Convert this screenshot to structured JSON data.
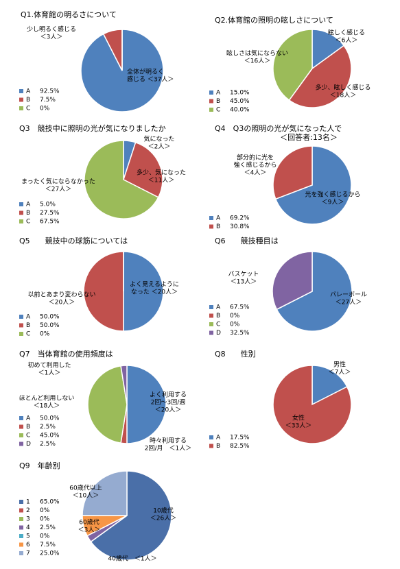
{
  "chart_data": [
    {
      "type": "pie",
      "title": "Q1.体育館の明るさについて",
      "categories": [
        "A",
        "B",
        "C"
      ],
      "values": [
        92.5,
        7.5,
        0
      ],
      "value_labels": [
        "92.5%",
        "7.5%",
        "0%"
      ],
      "colors": [
        "#4f81bd",
        "#c0504d",
        "#9bbb59"
      ],
      "annotations": [
        [
          "全体が明るく",
          "感じる ＜37人＞"
        ],
        [
          "少し明るく感じる",
          "＜3人＞"
        ]
      ]
    },
    {
      "type": "pie",
      "title": "Q2.体育館の照明の眩しさについて",
      "categories": [
        "A",
        "B",
        "C"
      ],
      "values": [
        15.0,
        45.0,
        40.0
      ],
      "value_labels": [
        "15.0%",
        "45.0%",
        "40.0%"
      ],
      "colors": [
        "#4f81bd",
        "#c0504d",
        "#9bbb59"
      ],
      "annotations": [
        [
          "眩しく感じる",
          "＜6人＞"
        ],
        [
          "多少、眩しく感じる",
          "＜18人＞"
        ],
        [
          "眩しさは気にならない",
          "＜16人＞"
        ]
      ]
    },
    {
      "type": "pie",
      "title": "Q3　競技中に照明の光が気になりましたか",
      "categories": [
        "A",
        "B",
        "C"
      ],
      "values": [
        5.0,
        27.5,
        67.5
      ],
      "value_labels": [
        "5.0%",
        "27.5%",
        "67.5%"
      ],
      "colors": [
        "#4f81bd",
        "#c0504d",
        "#9bbb59"
      ],
      "annotations": [
        [
          "気になった",
          "＜2人＞"
        ],
        [
          "多少、気になった",
          "＜11人＞"
        ],
        [
          "まったく気にならなかった",
          "＜27人＞"
        ]
      ]
    },
    {
      "type": "pie",
      "title": "Q4　Q3の照明の光が気になった人で",
      "subtitle": "＜回答者:13名＞",
      "categories": [
        "A",
        "B"
      ],
      "values": [
        69.2,
        30.8
      ],
      "value_labels": [
        "69.2%",
        "30.8%"
      ],
      "colors": [
        "#4f81bd",
        "#c0504d"
      ],
      "annotations": [
        [
          "光を強く感じるから",
          "＜9人＞"
        ],
        [
          "部分的に光を",
          "強く感じるから",
          "＜4人＞"
        ]
      ]
    },
    {
      "type": "pie",
      "title": "Q5　　競技中の球筋については",
      "categories": [
        "A",
        "B",
        "C"
      ],
      "values": [
        50.0,
        50.0,
        0
      ],
      "value_labels": [
        "50.0%",
        "50.0%",
        "0%"
      ],
      "colors": [
        "#4f81bd",
        "#c0504d",
        "#9bbb59"
      ],
      "annotations": [
        [
          "よく見えるように",
          "なった ＜20人＞"
        ],
        [
          "以前とあまり変わらない",
          "＜20人＞"
        ]
      ]
    },
    {
      "type": "pie",
      "title": "Q6　　競技種目は",
      "categories": [
        "A",
        "B",
        "C",
        "D"
      ],
      "values": [
        67.5,
        0,
        0,
        32.5
      ],
      "value_labels": [
        "67.5%",
        "0%",
        "0%",
        "32.5%"
      ],
      "colors": [
        "#4f81bd",
        "#c0504d",
        "#9bbb59",
        "#8064a2"
      ],
      "annotations": [
        [
          "バレーボール",
          "＜27人＞"
        ],
        [
          "バスケット",
          "＜13人＞"
        ]
      ]
    },
    {
      "type": "pie",
      "title": "Q7　当体育館の使用頻度は",
      "categories": [
        "A",
        "B",
        "C",
        "D"
      ],
      "values": [
        50.0,
        2.5,
        45.0,
        2.5
      ],
      "value_labels": [
        "50.0%",
        "2.5%",
        "45.0%",
        "2.5%"
      ],
      "colors": [
        "#4f81bd",
        "#c0504d",
        "#9bbb59",
        "#8064a2"
      ],
      "annotations": [
        [
          "よく利用する",
          "2回～3回/週",
          "＜20人＞"
        ],
        [
          "時々利用する",
          "2回/月　＜1人＞"
        ],
        [
          "ほとんど利用しない",
          "＜18人＞"
        ],
        [
          "初めて利用した",
          "＜1人＞"
        ]
      ]
    },
    {
      "type": "pie",
      "title": "Q8　　性別",
      "categories": [
        "A",
        "B"
      ],
      "values": [
        17.5,
        82.5
      ],
      "value_labels": [
        "17.5%",
        "82.5%"
      ],
      "colors": [
        "#4f81bd",
        "#c0504d"
      ],
      "annotations": [
        [
          "男性",
          "＜7人＞"
        ],
        [
          "女性",
          "＜33人＞"
        ]
      ]
    },
    {
      "type": "pie",
      "title": "Q9　年齢別",
      "categories": [
        "1",
        "2",
        "3",
        "4",
        "5",
        "6",
        "7"
      ],
      "values": [
        65.0,
        0,
        0,
        2.5,
        0,
        7.5,
        25.0
      ],
      "value_labels": [
        "65.0%",
        "0%",
        "0%",
        "2.5%",
        "0%",
        "7.5%",
        "25.0%"
      ],
      "colors": [
        "#4a6fa8",
        "#c0504d",
        "#9bbb59",
        "#8064a2",
        "#4bacc6",
        "#f79646",
        "#95abd0"
      ],
      "annotations": [
        [
          "10歳代",
          "＜26人＞"
        ],
        [
          "40歳代　＜1人＞"
        ],
        [
          "60歳代",
          "＜3人＞"
        ],
        [
          "60歳代以上",
          "＜10人＞"
        ]
      ]
    }
  ]
}
